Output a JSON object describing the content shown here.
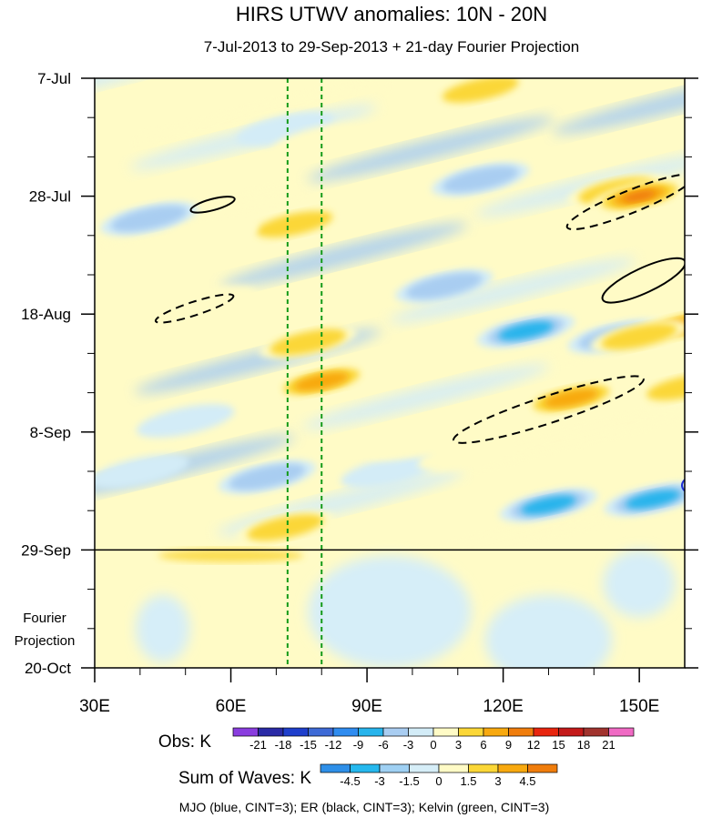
{
  "chart_data": {
    "type": "heatmap",
    "title": "HIRS UTWV anomalies: 10N - 20N",
    "subtitle": "7-Jul-2013 to 29-Sep-2013 + 21-day Fourier Projection",
    "x_range": [
      30,
      160
    ],
    "x_ticks": [
      30,
      60,
      90,
      120,
      150
    ],
    "x_tick_labels": [
      "30E",
      "60E",
      "90E",
      "120E",
      "150E"
    ],
    "y_range_days": [
      0,
      105
    ],
    "y_ticks_days": [
      0,
      21,
      42,
      63,
      84,
      105
    ],
    "y_tick_labels": [
      "7-Jul",
      "28-Jul",
      "18-Aug",
      "8-Sep",
      "29-Sep",
      "20-Oct"
    ],
    "projection_start_day": 84,
    "projection_label_line1": "Fourier",
    "projection_label_line2": "Projection",
    "reference_lines_lon": [
      72.5,
      80
    ],
    "obs_colorbar": {
      "label": "Obs: K",
      "levels": [
        -21,
        -18,
        -15,
        -12,
        -9,
        -6,
        -3,
        0,
        3,
        6,
        9,
        12,
        15,
        18,
        21
      ],
      "colors": [
        "#8a3ddf",
        "#2a2aa6",
        "#1f3fcc",
        "#3e6ad6",
        "#2f8cf0",
        "#27b4ec",
        "#a9cdf1",
        "#d3ecf7",
        "#fffbc6",
        "#fbd737",
        "#f8a90f",
        "#f07d0c",
        "#e8250e",
        "#c41a1a",
        "#a1332e",
        "#f06ac4"
      ]
    },
    "waves_colorbar": {
      "label": "Sum of Waves: K",
      "levels": [
        "-4.5",
        "-3",
        "-1.5",
        "0",
        "1.5",
        "3",
        "4.5"
      ],
      "colors": [
        "#2e8fe8",
        "#26b8ee",
        "#9fd0f3",
        "#d6eef8",
        "#fffbc6",
        "#fbd737",
        "#f8a90f",
        "#f07d0c"
      ]
    },
    "features": {
      "warm_anomalies": [
        {
          "lon": 115,
          "day": 2,
          "val": 6
        },
        {
          "lon": 80,
          "day": 11,
          "val": 3
        },
        {
          "lon": 145,
          "day": 20,
          "val": 6
        },
        {
          "lon": 150,
          "day": 21,
          "val": 12
        },
        {
          "lon": 74,
          "day": 26,
          "val": 6
        },
        {
          "lon": 55,
          "day": 28,
          "val": 3
        },
        {
          "lon": 160,
          "day": 44,
          "val": 9
        },
        {
          "lon": 150,
          "day": 46,
          "val": 6
        },
        {
          "lon": 77,
          "day": 47,
          "val": 6
        },
        {
          "lon": 55,
          "day": 40,
          "val": 3
        },
        {
          "lon": 80,
          "day": 54,
          "val": 9
        },
        {
          "lon": 135,
          "day": 57,
          "val": 9
        },
        {
          "lon": 160,
          "day": 55,
          "val": 6
        },
        {
          "lon": 72,
          "day": 80,
          "val": 6
        },
        {
          "lon": 45,
          "day": 78,
          "val": 3
        },
        {
          "lon": 100,
          "day": 65,
          "val": 3
        },
        {
          "lon": 112,
          "day": 67,
          "val": 3
        }
      ],
      "cold_anomalies": [
        {
          "lon": 42,
          "day": 25,
          "val": -6
        },
        {
          "lon": 115,
          "day": 18,
          "val": -6
        },
        {
          "lon": 125,
          "day": 45,
          "val": -9
        },
        {
          "lon": 145,
          "day": 46,
          "val": -6
        },
        {
          "lon": 107,
          "day": 37,
          "val": -6
        },
        {
          "lon": 68,
          "day": 71,
          "val": -6
        },
        {
          "lon": 130,
          "day": 76,
          "val": -9
        },
        {
          "lon": 153,
          "day": 75,
          "val": -9
        },
        {
          "lon": 95,
          "day": 70,
          "val": -3
        },
        {
          "lon": 40,
          "day": 70,
          "val": -3
        },
        {
          "lon": 72,
          "day": 9,
          "val": -3
        },
        {
          "lon": 50,
          "day": 61,
          "val": -3
        }
      ],
      "er_contours_dashed": [
        {
          "lon": 52,
          "day": 41,
          "semi_major_deg": 9,
          "semi_minor_days": 1.2,
          "angle_deg": -18
        },
        {
          "lon": 148,
          "day": 22,
          "semi_major_deg": 15,
          "semi_minor_days": 2,
          "angle_deg": -22
        },
        {
          "lon": 130,
          "day": 59,
          "semi_major_deg": 22,
          "semi_minor_days": 2.4,
          "angle_deg": -18
        }
      ],
      "er_contours_solid": [
        {
          "lon": 56,
          "day": 22.5,
          "semi_major_deg": 5,
          "semi_minor_days": 1,
          "angle_deg": -15
        },
        {
          "lon": 151,
          "day": 36,
          "semi_major_deg": 10,
          "semi_minor_days": 2.2,
          "angle_deg": -25
        }
      ],
      "mjo_contours": [
        {
          "lon": 160,
          "day": 72.5
        }
      ]
    }
  },
  "footer": "MJO (blue, CINT=3); ER (black, CINT=3); Kelvin (green, CINT=3)"
}
